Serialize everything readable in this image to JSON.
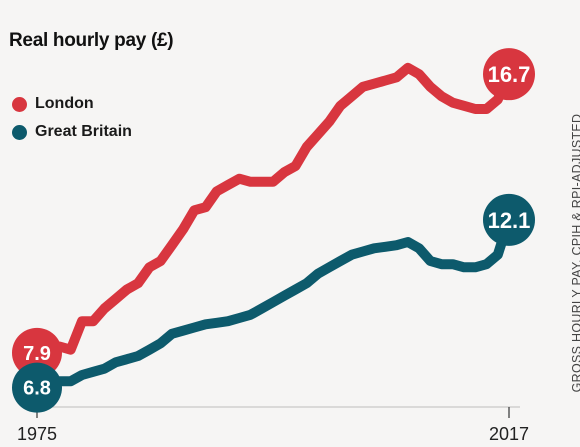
{
  "chart_data": {
    "type": "line",
    "title": "Real hourly pay (£)",
    "side_note": "GROSS HOURLY PAY, CPIH & RPI-ADJUSTED",
    "x": [
      1975,
      1976,
      1977,
      1978,
      1979,
      1980,
      1981,
      1982,
      1983,
      1984,
      1985,
      1986,
      1987,
      1988,
      1989,
      1990,
      1991,
      1992,
      1993,
      1994,
      1995,
      1996,
      1997,
      1998,
      1999,
      2000,
      2001,
      2002,
      2003,
      2004,
      2005,
      2006,
      2007,
      2008,
      2009,
      2010,
      2011,
      2012,
      2013,
      2014,
      2015,
      2016,
      2017
    ],
    "x_tick_labels": [
      "1975",
      "2017"
    ],
    "xlim": [
      1975,
      2017
    ],
    "ylim": [
      6.0,
      18.0
    ],
    "grid": false,
    "legend_position": "top-left",
    "series": [
      {
        "name": "London",
        "color": "#d8363f",
        "values": [
          7.9,
          7.8,
          8.1,
          8.0,
          8.9,
          8.9,
          9.3,
          9.6,
          9.9,
          10.1,
          10.6,
          10.8,
          11.3,
          11.8,
          12.4,
          12.5,
          13.0,
          13.2,
          13.4,
          13.3,
          13.3,
          13.3,
          13.6,
          13.8,
          14.4,
          14.8,
          15.2,
          15.7,
          16.0,
          16.3,
          16.4,
          16.5,
          16.6,
          16.9,
          16.7,
          16.3,
          16.0,
          15.8,
          15.7,
          15.6,
          15.6,
          15.9,
          16.7
        ],
        "end_label": "16.7",
        "start_label": "7.9"
      },
      {
        "name": "Great Britain",
        "color": "#0d5a6c",
        "values": [
          6.8,
          6.8,
          7.0,
          7.0,
          7.2,
          7.3,
          7.4,
          7.6,
          7.7,
          7.8,
          8.0,
          8.2,
          8.5,
          8.6,
          8.7,
          8.8,
          8.85,
          8.9,
          9.0,
          9.1,
          9.3,
          9.5,
          9.7,
          9.9,
          10.1,
          10.4,
          10.6,
          10.8,
          11.0,
          11.1,
          11.2,
          11.25,
          11.3,
          11.4,
          11.2,
          10.8,
          10.7,
          10.7,
          10.6,
          10.6,
          10.7,
          11.0,
          12.1
        ],
        "end_label": "12.1",
        "start_label": "6.8"
      }
    ]
  }
}
